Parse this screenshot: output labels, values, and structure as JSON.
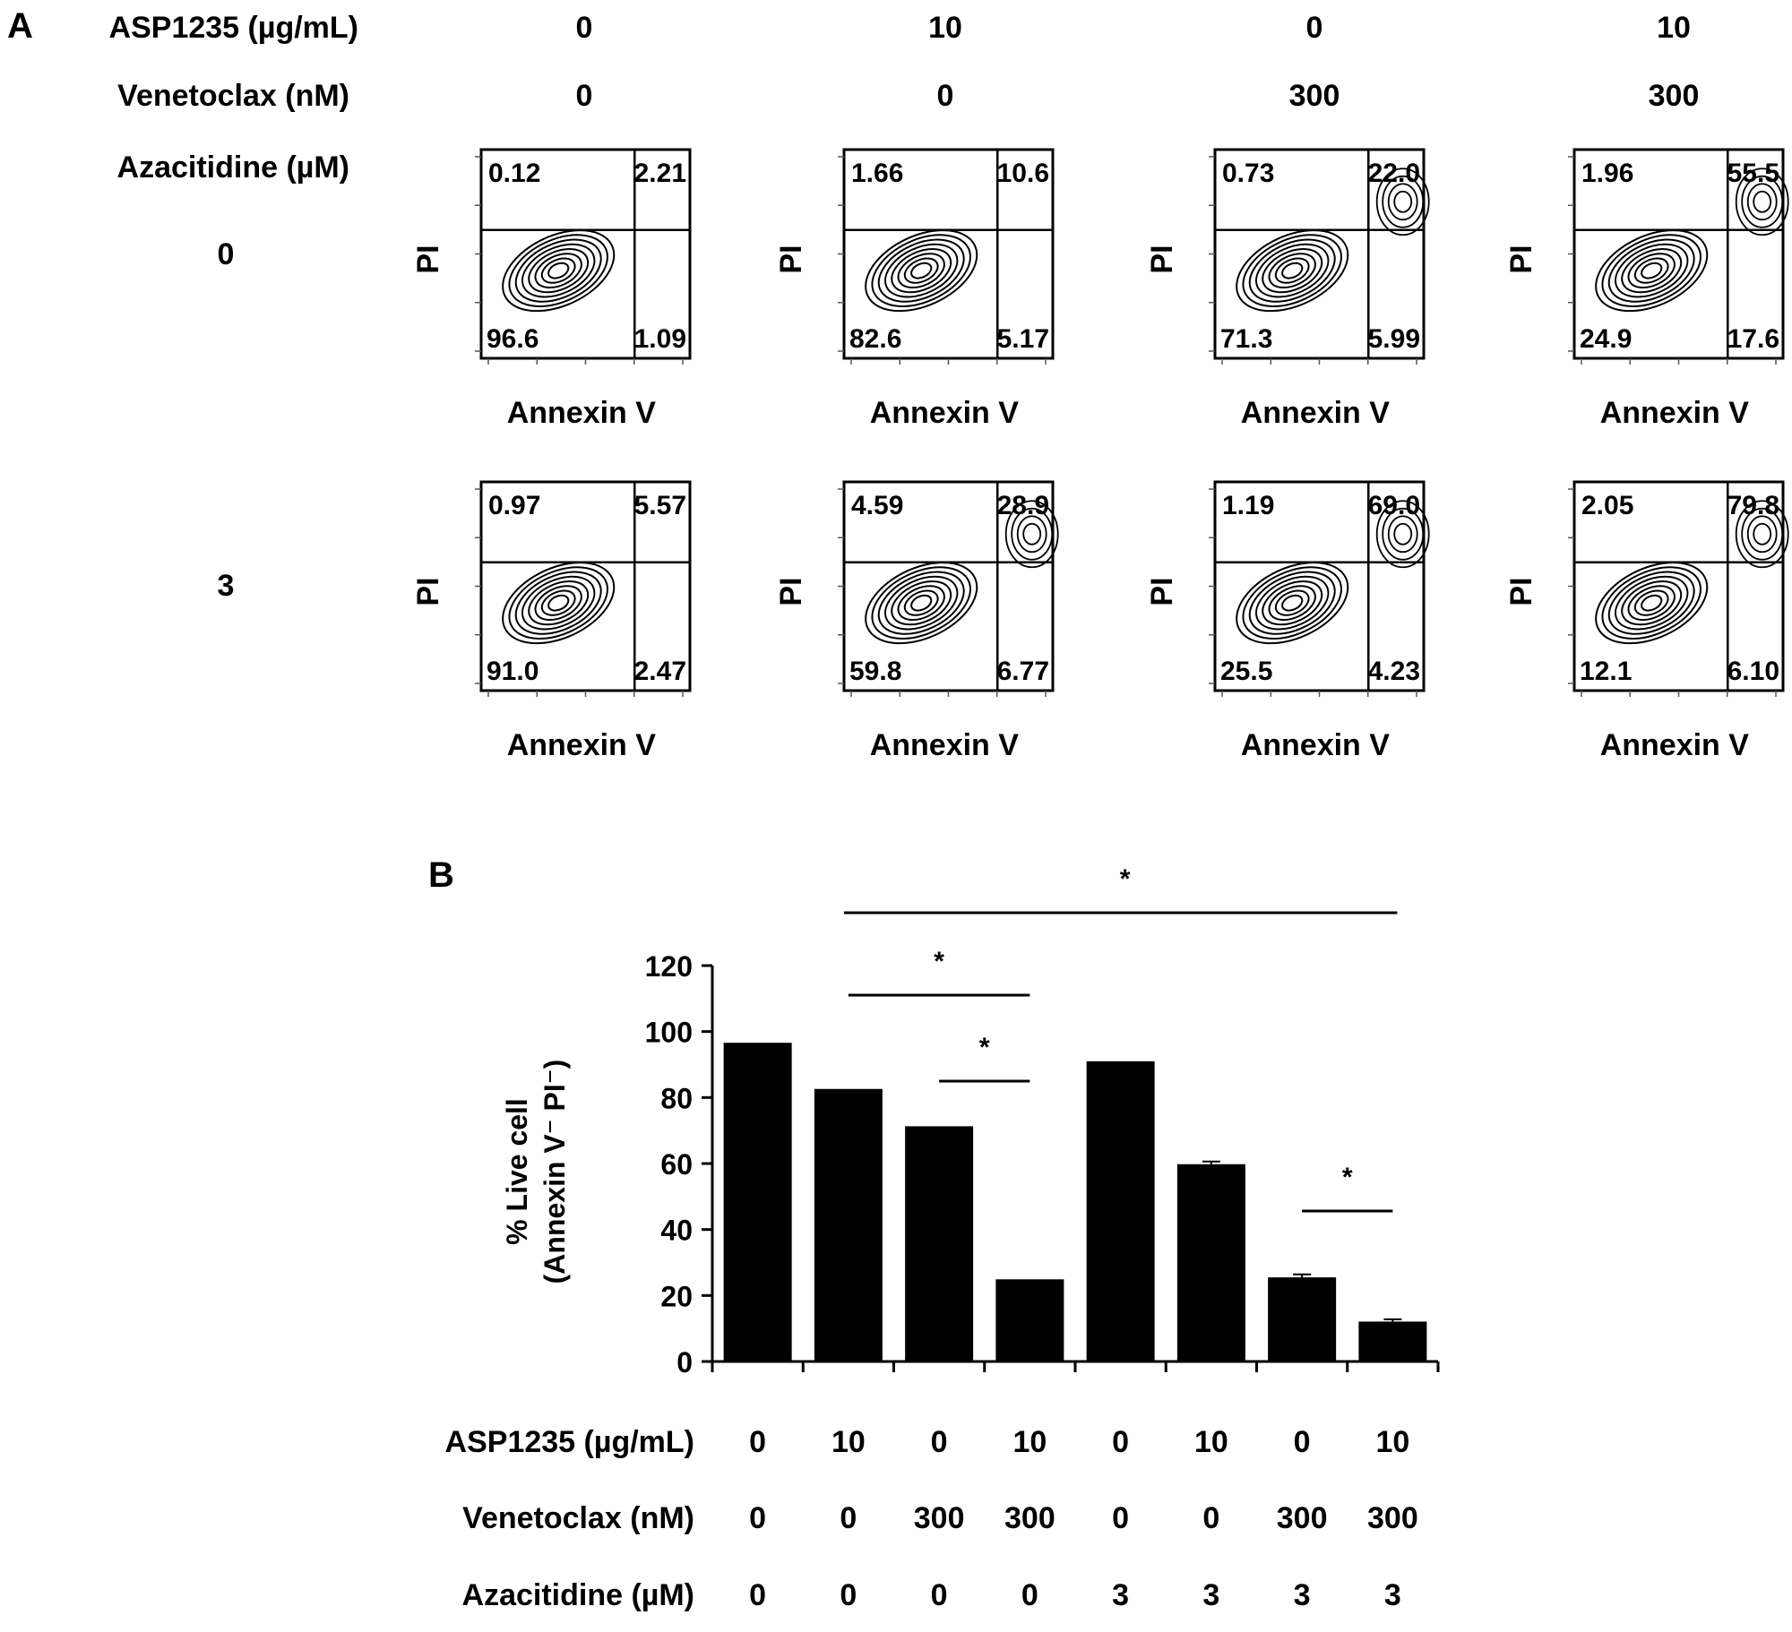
{
  "panel_a": {
    "label": "A",
    "conditions": {
      "asp_label": "ASP1235 (µg/mL)",
      "ven_label": "Venetoclax (nM)",
      "aza_label": "Azacitidine (µM)",
      "columns": [
        {
          "asp": "0",
          "ven": "0"
        },
        {
          "asp": "10",
          "ven": "0"
        },
        {
          "asp": "0",
          "ven": "300"
        },
        {
          "asp": "10",
          "ven": "300"
        }
      ],
      "rows": [
        {
          "aza": "0"
        },
        {
          "aza": "3"
        }
      ]
    },
    "x_axis_label": "Annexin V",
    "y_axis_label": "PI",
    "plots": [
      [
        {
          "ul": "0.12",
          "ur": "2.21",
          "ll": "96.6",
          "lr": "1.09"
        },
        {
          "ul": "1.66",
          "ur": "10.6",
          "ll": "82.6",
          "lr": "5.17"
        },
        {
          "ul": "0.73",
          "ur": "22.0",
          "ll": "71.3",
          "lr": "5.99"
        },
        {
          "ul": "1.96",
          "ur": "55.5",
          "ll": "24.9",
          "lr": "17.6"
        }
      ],
      [
        {
          "ul": "0.97",
          "ur": "5.57",
          "ll": "91.0",
          "lr": "2.47"
        },
        {
          "ul": "4.59",
          "ur": "28.9",
          "ll": "59.8",
          "lr": "6.77"
        },
        {
          "ul": "1.19",
          "ur": "69.0",
          "ll": "25.5",
          "lr": "4.23"
        },
        {
          "ul": "2.05",
          "ur": "79.8",
          "ll": "12.1",
          "lr": "6.10"
        }
      ]
    ]
  },
  "panel_b": {
    "label": "B",
    "ylabel_line1": "% Live cell",
    "ylabel_line2": "(Annexin V⁻ PI⁻)",
    "row_labels": {
      "asp": "ASP1235 (µg/mL)",
      "ven": "Venetoclax (nM)",
      "aza": "Azacitidine (µM)"
    },
    "bar_colors": {
      "bar": "#000000"
    }
  },
  "chart_data": {
    "type": "bar",
    "title": "",
    "xlabel": "",
    "ylabel": "% Live cell (Annexin V⁻ PI⁻)",
    "ylim": [
      0,
      120
    ],
    "yticks": [
      "0",
      "20",
      "40",
      "60",
      "80",
      "100",
      "120"
    ],
    "categories": [
      {
        "asp": "0",
        "ven": "0",
        "aza": "0"
      },
      {
        "asp": "10",
        "ven": "0",
        "aza": "0"
      },
      {
        "asp": "0",
        "ven": "300",
        "aza": "0"
      },
      {
        "asp": "10",
        "ven": "300",
        "aza": "0"
      },
      {
        "asp": "0",
        "ven": "0",
        "aza": "3"
      },
      {
        "asp": "10",
        "ven": "0",
        "aza": "3"
      },
      {
        "asp": "0",
        "ven": "300",
        "aza": "3"
      },
      {
        "asp": "10",
        "ven": "300",
        "aza": "3"
      }
    ],
    "values": [
      96.6,
      82.6,
      71.3,
      24.9,
      91.0,
      59.8,
      25.5,
      12.1
    ],
    "errors": [
      0,
      0,
      0,
      0,
      0,
      0.8,
      0.9,
      0.7
    ],
    "significance": [
      {
        "from": 1,
        "to": 7,
        "label": "*"
      },
      {
        "from": 1,
        "to": 3,
        "label": "*"
      },
      {
        "from": 2,
        "to": 3,
        "label": "*"
      },
      {
        "from": 6,
        "to": 7,
        "label": "*"
      }
    ]
  }
}
